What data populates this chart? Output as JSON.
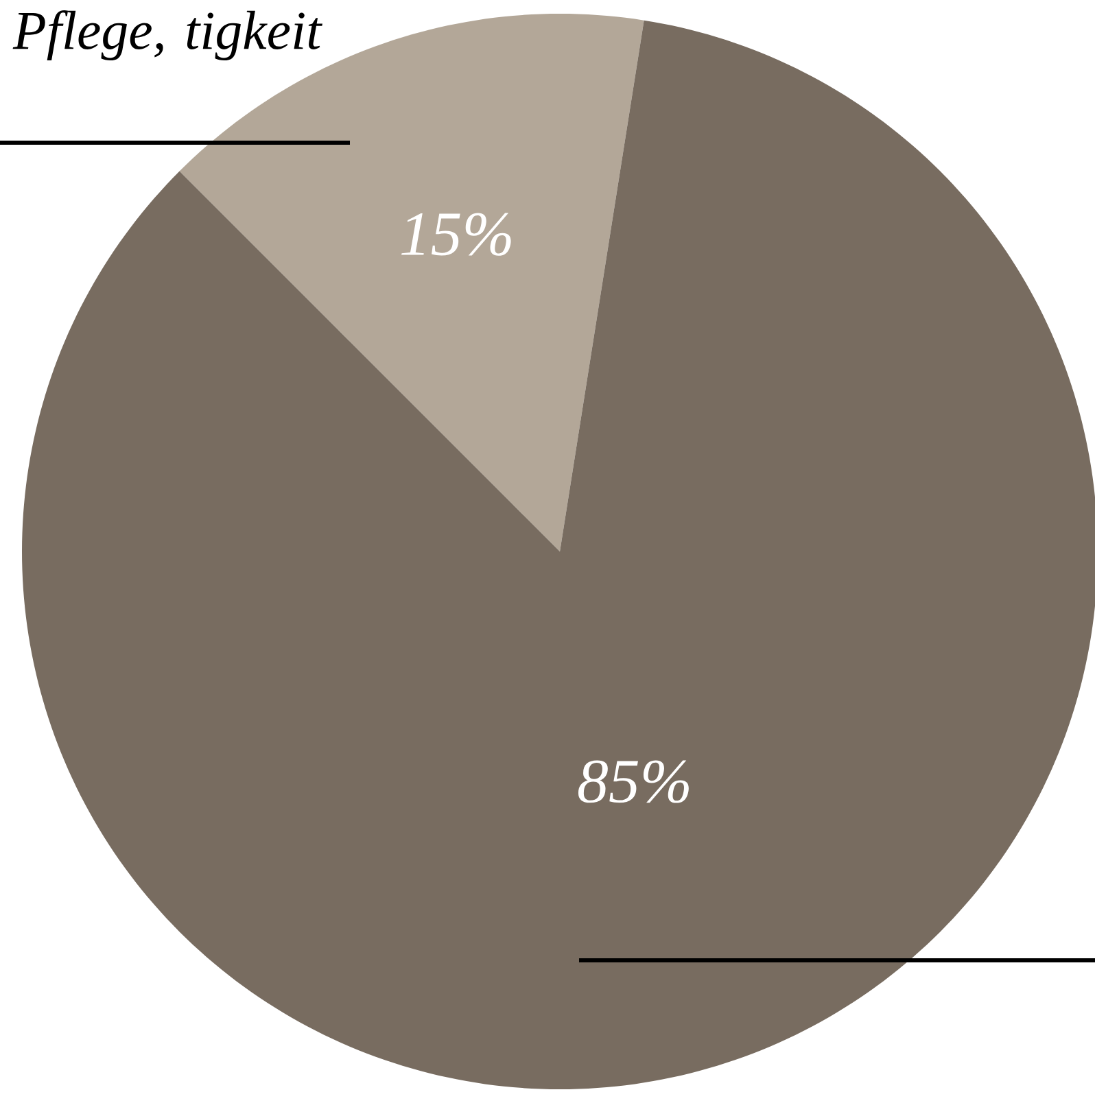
{
  "chart_data": {
    "type": "pie",
    "categories": [
      "Pflege, tigkeit",
      null
    ],
    "values": [
      15,
      85
    ],
    "value_labels": [
      "15%",
      "85%"
    ],
    "colors": [
      "#b3a798",
      "#786c60"
    ]
  }
}
